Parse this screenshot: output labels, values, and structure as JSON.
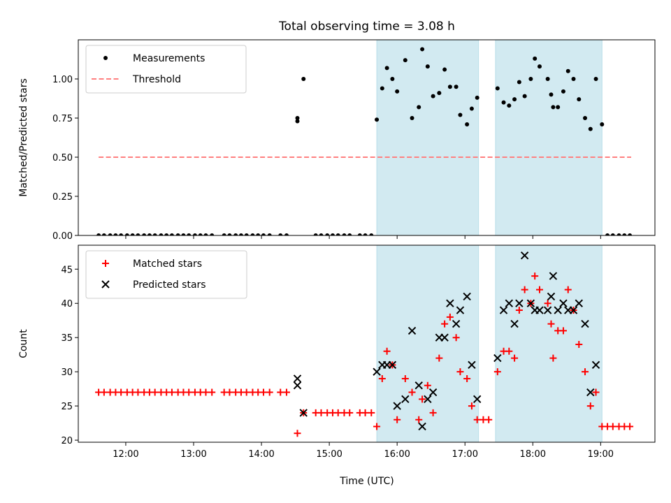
{
  "chart_data": {
    "title": "Total observing time = 3.08 h",
    "xlabel": "Time (UTC)",
    "x_ticks": [
      "12:00",
      "13:00",
      "14:00",
      "15:00",
      "16:00",
      "17:00",
      "18:00",
      "19:00"
    ],
    "x_tick_values": [
      12,
      13,
      14,
      15,
      16,
      17,
      18,
      19
    ],
    "xlim": [
      11.3,
      19.8
    ],
    "observing_windows": [
      [
        15.7,
        17.2
      ],
      [
        17.45,
        19.02
      ]
    ],
    "window_color": "#add8e6",
    "panels": [
      {
        "type": "scatter",
        "ylabel": "Matched/Predicted stars",
        "ylim": [
          0,
          1.25
        ],
        "y_ticks": [
          "0.00",
          "0.25",
          "0.50",
          "0.75",
          "1.00"
        ],
        "y_tick_values": [
          0,
          0.25,
          0.5,
          0.75,
          1.0
        ],
        "legend_position": "upper-left",
        "series": [
          {
            "name": "Measurements",
            "marker": "dot",
            "color": "#000000",
            "points": [
              [
                11.6,
                0
              ],
              [
                11.68,
                0
              ],
              [
                11.77,
                0
              ],
              [
                11.85,
                0
              ],
              [
                11.93,
                0
              ],
              [
                12.02,
                0
              ],
              [
                12.1,
                0
              ],
              [
                12.18,
                0
              ],
              [
                12.27,
                0
              ],
              [
                12.35,
                0
              ],
              [
                12.43,
                0
              ],
              [
                12.52,
                0
              ],
              [
                12.6,
                0
              ],
              [
                12.68,
                0
              ],
              [
                12.77,
                0
              ],
              [
                12.85,
                0
              ],
              [
                12.93,
                0
              ],
              [
                13.02,
                0
              ],
              [
                13.1,
                0
              ],
              [
                13.18,
                0
              ],
              [
                13.27,
                0
              ],
              [
                13.45,
                0
              ],
              [
                13.53,
                0
              ],
              [
                13.62,
                0
              ],
              [
                13.7,
                0
              ],
              [
                13.78,
                0
              ],
              [
                13.87,
                0
              ],
              [
                13.95,
                0
              ],
              [
                14.03,
                0
              ],
              [
                14.12,
                0
              ],
              [
                14.28,
                0
              ],
              [
                14.37,
                0
              ],
              [
                14.53,
                0.75
              ],
              [
                14.53,
                0.73
              ],
              [
                14.62,
                1.0
              ],
              [
                14.8,
                0
              ],
              [
                14.88,
                0
              ],
              [
                14.97,
                0
              ],
              [
                15.05,
                0
              ],
              [
                15.13,
                0
              ],
              [
                15.22,
                0
              ],
              [
                15.3,
                0
              ],
              [
                15.45,
                0
              ],
              [
                15.53,
                0
              ],
              [
                15.62,
                0
              ],
              [
                15.7,
                0.74
              ],
              [
                15.78,
                0.94
              ],
              [
                15.85,
                1.07
              ],
              [
                15.93,
                1.0
              ],
              [
                16.0,
                0.92
              ],
              [
                16.12,
                1.12
              ],
              [
                16.22,
                0.75
              ],
              [
                16.32,
                0.82
              ],
              [
                16.37,
                1.19
              ],
              [
                16.45,
                1.08
              ],
              [
                16.53,
                0.89
              ],
              [
                16.62,
                0.91
              ],
              [
                16.7,
                1.06
              ],
              [
                16.78,
                0.95
              ],
              [
                16.87,
                0.95
              ],
              [
                16.93,
                0.77
              ],
              [
                17.03,
                0.71
              ],
              [
                17.1,
                0.81
              ],
              [
                17.18,
                0.88
              ],
              [
                17.48,
                0.94
              ],
              [
                17.57,
                0.85
              ],
              [
                17.65,
                0.83
              ],
              [
                17.73,
                0.87
              ],
              [
                17.8,
                0.98
              ],
              [
                17.88,
                0.89
              ],
              [
                17.97,
                1.0
              ],
              [
                18.03,
                1.13
              ],
              [
                18.1,
                1.08
              ],
              [
                18.22,
                1.0
              ],
              [
                18.27,
                0.9
              ],
              [
                18.3,
                0.82
              ],
              [
                18.37,
                0.82
              ],
              [
                18.45,
                0.92
              ],
              [
                18.52,
                1.05
              ],
              [
                18.6,
                1.0
              ],
              [
                18.68,
                0.87
              ],
              [
                18.77,
                0.75
              ],
              [
                18.85,
                0.68
              ],
              [
                18.93,
                1.0
              ],
              [
                19.02,
                0.71
              ],
              [
                19.1,
                0
              ],
              [
                19.18,
                0
              ],
              [
                19.27,
                0
              ],
              [
                19.35,
                0
              ],
              [
                19.43,
                0
              ]
            ]
          },
          {
            "name": "Threshold",
            "marker": "dashed-line",
            "color": "#ff8080",
            "x": [
              11.6,
              19.45
            ],
            "y": [
              0.5,
              0.5
            ]
          }
        ]
      },
      {
        "type": "scatter",
        "ylabel": "Count",
        "ylim": [
          19.7,
          48.5
        ],
        "y_ticks": [
          "20",
          "25",
          "30",
          "35",
          "40",
          "45"
        ],
        "y_tick_values": [
          20,
          25,
          30,
          35,
          40,
          45
        ],
        "legend_position": "upper-left",
        "series": [
          {
            "name": "Matched stars",
            "marker": "plus",
            "color": "#ff0000",
            "points": [
              [
                11.6,
                27
              ],
              [
                11.68,
                27
              ],
              [
                11.77,
                27
              ],
              [
                11.85,
                27
              ],
              [
                11.93,
                27
              ],
              [
                12.02,
                27
              ],
              [
                12.1,
                27
              ],
              [
                12.18,
                27
              ],
              [
                12.27,
                27
              ],
              [
                12.35,
                27
              ],
              [
                12.43,
                27
              ],
              [
                12.52,
                27
              ],
              [
                12.6,
                27
              ],
              [
                12.68,
                27
              ],
              [
                12.77,
                27
              ],
              [
                12.85,
                27
              ],
              [
                12.93,
                27
              ],
              [
                13.02,
                27
              ],
              [
                13.1,
                27
              ],
              [
                13.18,
                27
              ],
              [
                13.27,
                27
              ],
              [
                13.45,
                27
              ],
              [
                13.53,
                27
              ],
              [
                13.62,
                27
              ],
              [
                13.7,
                27
              ],
              [
                13.78,
                27
              ],
              [
                13.87,
                27
              ],
              [
                13.95,
                27
              ],
              [
                14.03,
                27
              ],
              [
                14.12,
                27
              ],
              [
                14.28,
                27
              ],
              [
                14.37,
                27
              ],
              [
                14.53,
                21
              ],
              [
                14.62,
                24
              ],
              [
                14.8,
                24
              ],
              [
                14.88,
                24
              ],
              [
                14.97,
                24
              ],
              [
                15.05,
                24
              ],
              [
                15.13,
                24
              ],
              [
                15.22,
                24
              ],
              [
                15.3,
                24
              ],
              [
                15.45,
                24
              ],
              [
                15.53,
                24
              ],
              [
                15.62,
                24
              ],
              [
                15.7,
                22
              ],
              [
                15.78,
                29
              ],
              [
                15.85,
                33
              ],
              [
                15.93,
                31
              ],
              [
                16.0,
                23
              ],
              [
                16.12,
                29
              ],
              [
                16.22,
                27
              ],
              [
                16.32,
                23
              ],
              [
                16.37,
                26
              ],
              [
                16.45,
                28
              ],
              [
                16.53,
                24
              ],
              [
                16.62,
                32
              ],
              [
                16.7,
                37
              ],
              [
                16.78,
                38
              ],
              [
                16.87,
                35
              ],
              [
                16.93,
                30
              ],
              [
                17.03,
                29
              ],
              [
                17.1,
                25
              ],
              [
                17.18,
                23
              ],
              [
                17.27,
                23
              ],
              [
                17.35,
                23
              ],
              [
                17.48,
                30
              ],
              [
                17.57,
                33
              ],
              [
                17.65,
                33
              ],
              [
                17.73,
                32
              ],
              [
                17.8,
                39
              ],
              [
                17.88,
                42
              ],
              [
                17.97,
                40
              ],
              [
                18.03,
                44
              ],
              [
                18.1,
                42
              ],
              [
                18.22,
                40
              ],
              [
                18.27,
                37
              ],
              [
                18.3,
                32
              ],
              [
                18.37,
                36
              ],
              [
                18.45,
                36
              ],
              [
                18.52,
                42
              ],
              [
                18.6,
                39
              ],
              [
                18.68,
                34
              ],
              [
                18.77,
                30
              ],
              [
                18.85,
                25
              ],
              [
                18.93,
                27
              ],
              [
                19.02,
                22
              ],
              [
                19.1,
                22
              ],
              [
                19.18,
                22
              ],
              [
                19.27,
                22
              ],
              [
                19.35,
                22
              ],
              [
                19.43,
                22
              ]
            ]
          },
          {
            "name": "Predicted stars",
            "marker": "x",
            "color": "#000000",
            "points": [
              [
                14.53,
                29
              ],
              [
                14.53,
                28
              ],
              [
                14.62,
                24
              ],
              [
                15.7,
                30
              ],
              [
                15.78,
                31
              ],
              [
                15.85,
                31
              ],
              [
                15.93,
                31
              ],
              [
                16.0,
                25
              ],
              [
                16.12,
                26
              ],
              [
                16.22,
                36
              ],
              [
                16.32,
                28
              ],
              [
                16.37,
                22
              ],
              [
                16.45,
                26
              ],
              [
                16.53,
                27
              ],
              [
                16.62,
                35
              ],
              [
                16.7,
                35
              ],
              [
                16.78,
                40
              ],
              [
                16.87,
                37
              ],
              [
                16.93,
                39
              ],
              [
                17.03,
                41
              ],
              [
                17.1,
                31
              ],
              [
                17.18,
                26
              ],
              [
                17.48,
                32
              ],
              [
                17.57,
                39
              ],
              [
                17.65,
                40
              ],
              [
                17.73,
                37
              ],
              [
                17.8,
                40
              ],
              [
                17.88,
                47
              ],
              [
                17.97,
                40
              ],
              [
                18.03,
                39
              ],
              [
                18.1,
                39
              ],
              [
                18.22,
                39
              ],
              [
                18.27,
                41
              ],
              [
                18.3,
                44
              ],
              [
                18.37,
                39
              ],
              [
                18.45,
                40
              ],
              [
                18.52,
                39
              ],
              [
                18.6,
                39
              ],
              [
                18.68,
                40
              ],
              [
                18.77,
                37
              ],
              [
                18.85,
                27
              ],
              [
                18.93,
                31
              ]
            ]
          }
        ]
      }
    ]
  }
}
